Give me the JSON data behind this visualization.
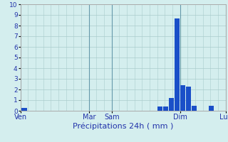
{
  "title": "",
  "xlabel": "Précipitations 24h ( mm )",
  "ylabel": "",
  "background_color": "#d4eeee",
  "bar_color": "#1a4fc8",
  "grid_color": "#aacccc",
  "dark_grid_color": "#6699aa",
  "axis_label_color": "#2233aa",
  "tick_label_color": "#2233aa",
  "xlim": [
    0,
    108
  ],
  "ylim": [
    0,
    10
  ],
  "yticks": [
    0,
    1,
    2,
    3,
    4,
    5,
    6,
    7,
    8,
    9,
    10
  ],
  "x_tick_positions": [
    0,
    36,
    48,
    84,
    108
  ],
  "x_tick_labels": [
    "Ven",
    "Mar",
    "Sam",
    "Dim",
    "Lun"
  ],
  "dark_vlines": [
    0,
    36,
    48,
    84,
    108
  ],
  "bar_positions": [
    0.5,
    72,
    75,
    78,
    81,
    84,
    87,
    90,
    93,
    96,
    99,
    102
  ],
  "bar_heights": [
    0.3,
    0.4,
    0.4,
    1.2,
    8.7,
    2.4,
    2.3,
    0.5,
    0.0,
    0.0,
    0.5,
    0.0
  ],
  "bar_width": 2.8
}
